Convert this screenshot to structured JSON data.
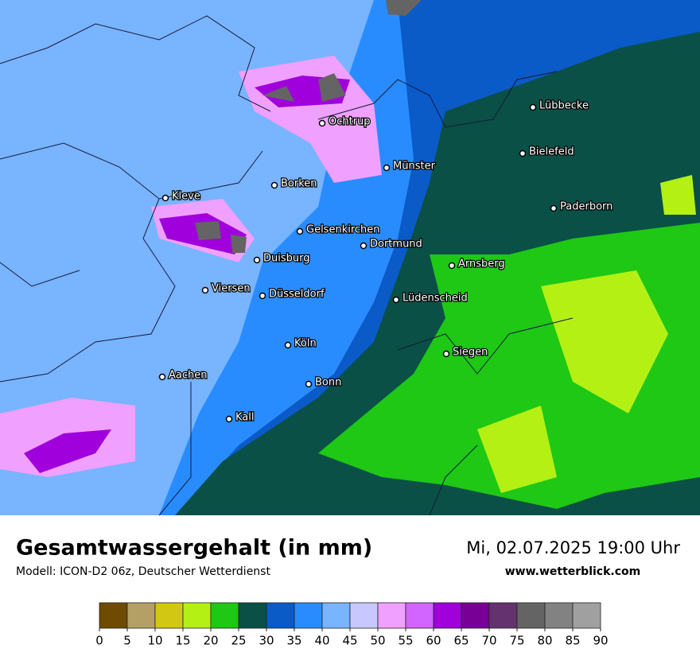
{
  "map": {
    "cities": [
      "Lübbecke",
      "Ochtrup",
      "Bielefeld",
      "Münster",
      "Borken",
      "Kleve",
      "Paderborn",
      "Gelsenkirchen",
      "Dortmund",
      "Duisburg",
      "Arnsberg",
      "Viersen",
      "Düsseldorf",
      "Lüdenscheid",
      "Köln",
      "Siegen",
      "Aachen",
      "Bonn",
      "Kall"
    ]
  },
  "footer": {
    "title": "Gesamtwassergehalt (in mm)",
    "model": "Modell: ICON-D2 06z, Deutscher Wetterdienst",
    "date": "Mi, 02.07.2025 19:00 Uhr",
    "website": "www.wetterblick.com"
  },
  "legend": {
    "ticks": [
      0,
      5,
      10,
      15,
      20,
      25,
      30,
      35,
      40,
      45,
      50,
      55,
      60,
      65,
      70,
      75,
      80,
      85,
      90
    ],
    "colors": [
      "#6e4b00",
      "#b4a064",
      "#d2c814",
      "#b4f014",
      "#1ec814",
      "#0a5046",
      "#0a5ac8",
      "#288cff",
      "#78b4ff",
      "#c8c8ff",
      "#f0a0ff",
      "#d264ff",
      "#a000dc",
      "#780096",
      "#64326e",
      "#646464",
      "#828282",
      "#a0a0a0"
    ]
  }
}
